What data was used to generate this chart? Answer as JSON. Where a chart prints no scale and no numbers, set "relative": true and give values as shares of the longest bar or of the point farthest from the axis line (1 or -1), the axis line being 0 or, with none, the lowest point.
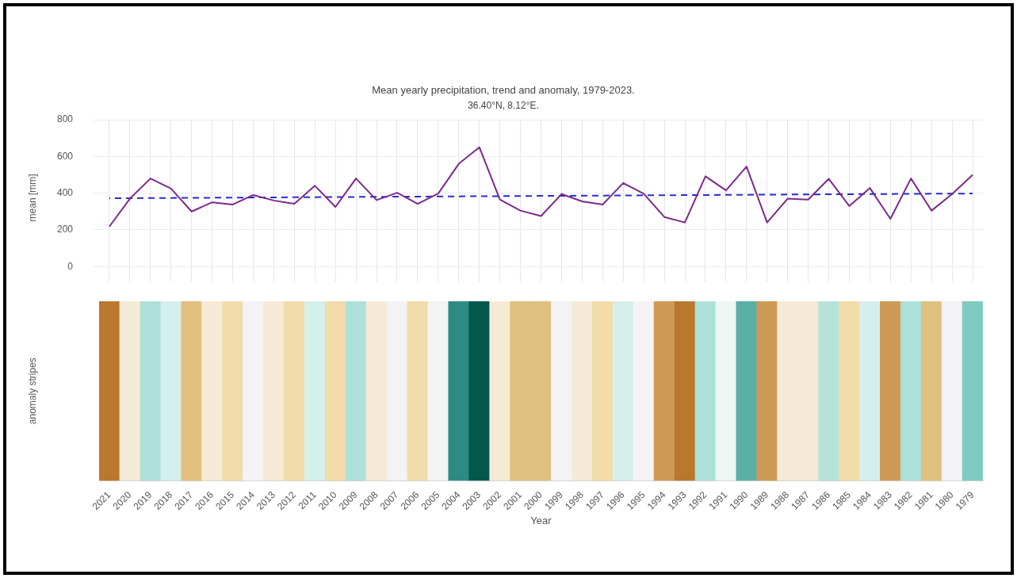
{
  "chart_data": [
    {
      "type": "line",
      "title": "Mean yearly precipitation, trend and anomaly, 1979-2023.",
      "subtitle": "36.40°N, 8.12°E.",
      "ylabel": "mean [mm]",
      "categories": [
        "2021",
        "2020",
        "2019",
        "2018",
        "2017",
        "2016",
        "2015",
        "2014",
        "2013",
        "2012",
        "2011",
        "2010",
        "2009",
        "2008",
        "2007",
        "2006",
        "2005",
        "2004",
        "2003",
        "2002",
        "2001",
        "2000",
        "1999",
        "1998",
        "1997",
        "1996",
        "1995",
        "1994",
        "1993",
        "1992",
        "1991",
        "1990",
        "1989",
        "1988",
        "1987",
        "1986",
        "1985",
        "1984",
        "1983",
        "1982",
        "1981",
        "1980",
        "1979"
      ],
      "series": [
        {
          "color": "#7b2a8a",
          "values": [
            218,
            370,
            480,
            425,
            300,
            350,
            338,
            390,
            360,
            342,
            440,
            325,
            480,
            362,
            402,
            342,
            398,
            560,
            650,
            365,
            305,
            275,
            395,
            355,
            338,
            455,
            397,
            270,
            240,
            492,
            415,
            545,
            240,
            370,
            365,
            478,
            330,
            428,
            260,
            480,
            305,
            395,
            500
          ]
        },
        {
          "color": "#2b2bcc",
          "line_style": "dashed",
          "values": [
            372,
            null,
            null,
            null,
            null,
            null,
            null,
            null,
            null,
            null,
            null,
            null,
            null,
            null,
            null,
            null,
            null,
            null,
            null,
            null,
            null,
            null,
            null,
            null,
            null,
            null,
            null,
            null,
            null,
            null,
            null,
            null,
            null,
            null,
            null,
            null,
            null,
            null,
            null,
            null,
            null,
            null,
            398
          ]
        }
      ],
      "ylim": [
        -50,
        800
      ],
      "yticks": [
        0,
        200,
        400,
        600,
        800
      ],
      "grid": true,
      "tick_labels": "y",
      "marker": "none"
    },
    {
      "type": "bar",
      "ylabel": "anomaly stripes",
      "xlabel": "Year",
      "relative": true,
      "tick_labels": "x",
      "categories": [
        "2021",
        "2020",
        "2019",
        "2018",
        "2017",
        "2016",
        "2015",
        "2014",
        "2013",
        "2012",
        "2011",
        "2010",
        "2009",
        "2008",
        "2007",
        "2006",
        "2005",
        "2004",
        "2003",
        "2002",
        "2001",
        "2000",
        "1999",
        "1998",
        "1997",
        "1996",
        "1995",
        "1994",
        "1993",
        "1992",
        "1991",
        "1990",
        "1989",
        "1988",
        "1987",
        "1986",
        "1985",
        "1984",
        "1983",
        "1982",
        "1981",
        "1980",
        "1979"
      ],
      "values": [
        1,
        1,
        1,
        1,
        1,
        1,
        1,
        1,
        1,
        1,
        1,
        1,
        1,
        1,
        1,
        1,
        1,
        1,
        1,
        1,
        1,
        1,
        1,
        1,
        1,
        1,
        1,
        1,
        1,
        1,
        1,
        1,
        1,
        1,
        1,
        1,
        1,
        1,
        1,
        1,
        1,
        1,
        1
      ],
      "colors": [
        "#b8782e",
        "#f5ead6",
        "#aee0da",
        "#d5efec",
        "#e2c07f",
        "#f5ead6",
        "#f1dcaa",
        "#f3f3f5",
        "#f5ead6",
        "#f1dcaa",
        "#d5efec",
        "#f1dcaa",
        "#aee0da",
        "#f5ead6",
        "#f3f3f5",
        "#f1dcaa",
        "#f3f3f5",
        "#2e8b84",
        "#04574c",
        "#f5ead6",
        "#dfc07e",
        "#dfc07e",
        "#f3f3f5",
        "#f5ead6",
        "#f1dcaa",
        "#d5efec",
        "#f3f3f5",
        "#cd9b55",
        "#b8782e",
        "#aee0da",
        "#eef5f3",
        "#5ab0a5",
        "#cd9b55",
        "#f5ead6",
        "#f5ead6",
        "#b6e2da",
        "#f1dcaa",
        "#d5efec",
        "#cd9b55",
        "#aee0da",
        "#dfc07e",
        "#f3f3f5",
        "#80cbc1"
      ]
    }
  ]
}
